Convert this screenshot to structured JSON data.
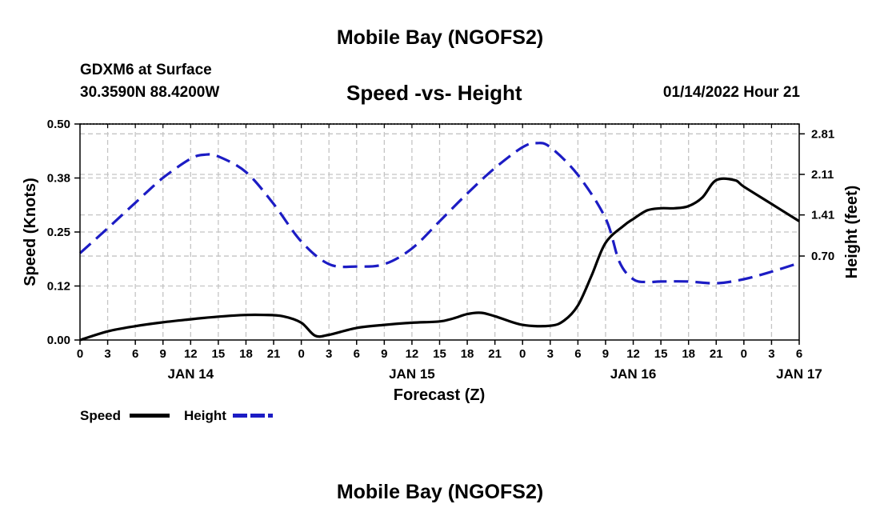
{
  "page": {
    "title_top": "Mobile Bay (NGOFS2)",
    "title_bottom": "Mobile Bay (NGOFS2)",
    "station": "GDXM6 at Surface",
    "location": "30.3590N  88.4200W",
    "datetime": "01/14/2022 Hour 21"
  },
  "chart_data": {
    "type": "line",
    "title": "Speed -vs- Height",
    "xlabel": "Forecast (Z)",
    "ylabel_left": "Speed (Knots)",
    "ylabel_right": "Height (feet)",
    "x_unit": "hours since 2022-01-14 00Z",
    "xlim": [
      0,
      78
    ],
    "ylim_left": [
      0,
      0.5
    ],
    "ylim_right": [
      -0.75,
      2.98
    ],
    "x_ticks": [
      0,
      3,
      6,
      9,
      12,
      15,
      18,
      21,
      24,
      27,
      30,
      33,
      36,
      39,
      42,
      45,
      48,
      51,
      54,
      57,
      60,
      63,
      66,
      69,
      72,
      75,
      78
    ],
    "x_tick_labels": [
      "0",
      "3",
      "6",
      "9",
      "12",
      "15",
      "18",
      "21",
      "0",
      "3",
      "6",
      "9",
      "12",
      "15",
      "18",
      "21",
      "0",
      "3",
      "6",
      "9",
      "12",
      "15",
      "18",
      "21",
      "0",
      "3",
      "6"
    ],
    "day_labels": [
      {
        "label": "JAN 14",
        "x": 12
      },
      {
        "label": "JAN 15",
        "x": 36
      },
      {
        "label": "JAN 16",
        "x": 60
      },
      {
        "label": "JAN 17",
        "x": 78
      }
    ],
    "y_left_ticks": [
      0.0,
      0.125,
      0.25,
      0.375,
      0.5
    ],
    "y_left_tick_labels": [
      "0.00",
      "0.12",
      "0.25",
      "0.38",
      "0.50"
    ],
    "y_right_ticks": [
      0.7,
      1.41,
      2.11,
      2.81
    ],
    "y_right_tick_labels": [
      "0.70",
      "1.41",
      "2.11",
      "2.81"
    ],
    "grid": true,
    "series": [
      {
        "name": "Speed",
        "axis": "left",
        "color": "#000000",
        "dash": "solid",
        "x": [
          0,
          3,
          6,
          9,
          12,
          15,
          18,
          20,
          22,
          24,
          25.5,
          27,
          30,
          33,
          36,
          39,
          40.5,
          42,
          43.5,
          45,
          48,
          51,
          52.5,
          54,
          55.5,
          57,
          59,
          60,
          61.5,
          63,
          64.5,
          66,
          67.5,
          69,
          71,
          72,
          75,
          78
        ],
        "values": [
          0.0,
          0.02,
          0.032,
          0.041,
          0.048,
          0.054,
          0.058,
          0.058,
          0.055,
          0.04,
          0.01,
          0.012,
          0.028,
          0.035,
          0.04,
          0.043,
          0.05,
          0.06,
          0.063,
          0.055,
          0.035,
          0.033,
          0.045,
          0.08,
          0.15,
          0.225,
          0.265,
          0.28,
          0.3,
          0.305,
          0.305,
          0.31,
          0.33,
          0.37,
          0.37,
          0.355,
          0.315,
          0.275
        ]
      },
      {
        "name": "Height",
        "axis": "right",
        "color": "#1c1cc4",
        "dash": "dashed",
        "x": [
          0,
          3,
          6,
          9,
          12,
          13.5,
          15,
          18,
          21,
          24,
          27,
          30,
          33,
          36,
          39,
          42,
          45,
          48,
          49.5,
          51,
          54,
          57,
          58.5,
          60,
          61.5,
          63,
          66,
          69,
          72,
          75,
          78
        ],
        "values": [
          0.75,
          1.18,
          1.62,
          2.05,
          2.38,
          2.45,
          2.42,
          2.15,
          1.6,
          0.95,
          0.56,
          0.52,
          0.56,
          0.83,
          1.3,
          1.78,
          2.22,
          2.58,
          2.65,
          2.58,
          2.1,
          1.35,
          0.6,
          0.3,
          0.25,
          0.26,
          0.26,
          0.23,
          0.3,
          0.43,
          0.58
        ]
      }
    ],
    "legend": {
      "placement": "bottom-left",
      "items": [
        {
          "label": "Speed",
          "color": "#000000",
          "dash": "solid"
        },
        {
          "label": "Height",
          "color": "#1c1cc4",
          "dash": "dashed"
        }
      ]
    }
  }
}
